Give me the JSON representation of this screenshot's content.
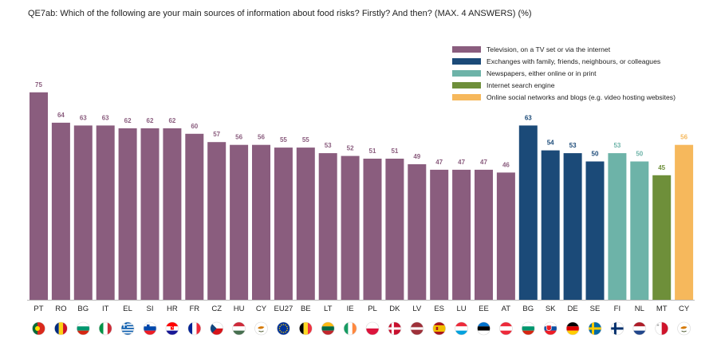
{
  "title": "QE7ab: Which of the following are your main sources of information about food risks? Firstly? And then? (MAX. 4 ANSWERS) (%)",
  "colors": {
    "television": "#8a5d7e",
    "exchanges": "#1b4a78",
    "newspapers": "#6db3a8",
    "internet_search": "#6e8f3a",
    "social_networks": "#f6b85c"
  },
  "legend": [
    {
      "label": "Television, on a TV set or via the internet",
      "color": "#8a5d7e"
    },
    {
      "label": "Exchanges with family, friends, neighbours, or colleagues",
      "color": "#1b4a78"
    },
    {
      "label": "Newspapers, either online or in print",
      "color": "#6db3a8"
    },
    {
      "label": "Internet search engine",
      "color": "#6e8f3a"
    },
    {
      "label": "Online social networks and blogs (e.g. video hosting websites)",
      "color": "#f6b85c"
    }
  ],
  "chart_data": {
    "type": "bar",
    "title": "QE7ab: Which of the following are your main sources of information about food risks? Firstly? And then? (MAX. 4 ANSWERS) (%)",
    "ylim": [
      0,
      80
    ],
    "grid": false,
    "legend_position": "top-right",
    "categories": [
      "PT",
      "RO",
      "BG",
      "IT",
      "EL",
      "SI",
      "HR",
      "FR",
      "CZ",
      "HU",
      "CY",
      "EU27",
      "BE",
      "LT",
      "IE",
      "PL",
      "DK",
      "LV",
      "ES",
      "LU",
      "EE",
      "AT",
      "BG",
      "SK",
      "DE",
      "SE",
      "FI",
      "NL",
      "MT",
      "CY"
    ],
    "values": [
      75,
      64,
      63,
      63,
      62,
      62,
      62,
      60,
      57,
      56,
      56,
      55,
      55,
      53,
      52,
      51,
      51,
      49,
      47,
      47,
      47,
      46,
      63,
      54,
      53,
      50,
      53,
      50,
      45,
      56
    ],
    "bar_series": [
      "television",
      "television",
      "television",
      "television",
      "television",
      "television",
      "television",
      "television",
      "television",
      "television",
      "television",
      "television",
      "television",
      "television",
      "television",
      "television",
      "television",
      "television",
      "television",
      "television",
      "television",
      "television",
      "exchanges",
      "exchanges",
      "exchanges",
      "exchanges",
      "newspapers",
      "newspapers",
      "internet_search",
      "social_networks"
    ],
    "series": [
      {
        "name": "Television, on a TV set or via the internet",
        "key": "television"
      },
      {
        "name": "Exchanges with family, friends, neighbours, or colleagues",
        "key": "exchanges"
      },
      {
        "name": "Newspapers, either online or in print",
        "key": "newspapers"
      },
      {
        "name": "Internet search engine",
        "key": "internet_search"
      },
      {
        "name": "Online social networks and blogs (e.g. video hosting websites)",
        "key": "social_networks"
      }
    ],
    "flags": [
      "portugal-flag",
      "romania-flag",
      "bulgaria-flag",
      "italy-flag",
      "greece-flag",
      "slovenia-flag",
      "croatia-flag",
      "france-flag",
      "czechia-flag",
      "hungary-flag",
      "cyprus-flag",
      "eu-flag",
      "belgium-flag",
      "lithuania-flag",
      "ireland-flag",
      "poland-flag",
      "denmark-flag",
      "latvia-flag",
      "spain-flag",
      "luxembourg-flag",
      "estonia-flag",
      "austria-flag",
      "bulgaria-flag",
      "slovakia-flag",
      "germany-flag",
      "sweden-flag",
      "finland-flag",
      "netherlands-flag",
      "malta-flag",
      "cyprus-flag"
    ]
  }
}
